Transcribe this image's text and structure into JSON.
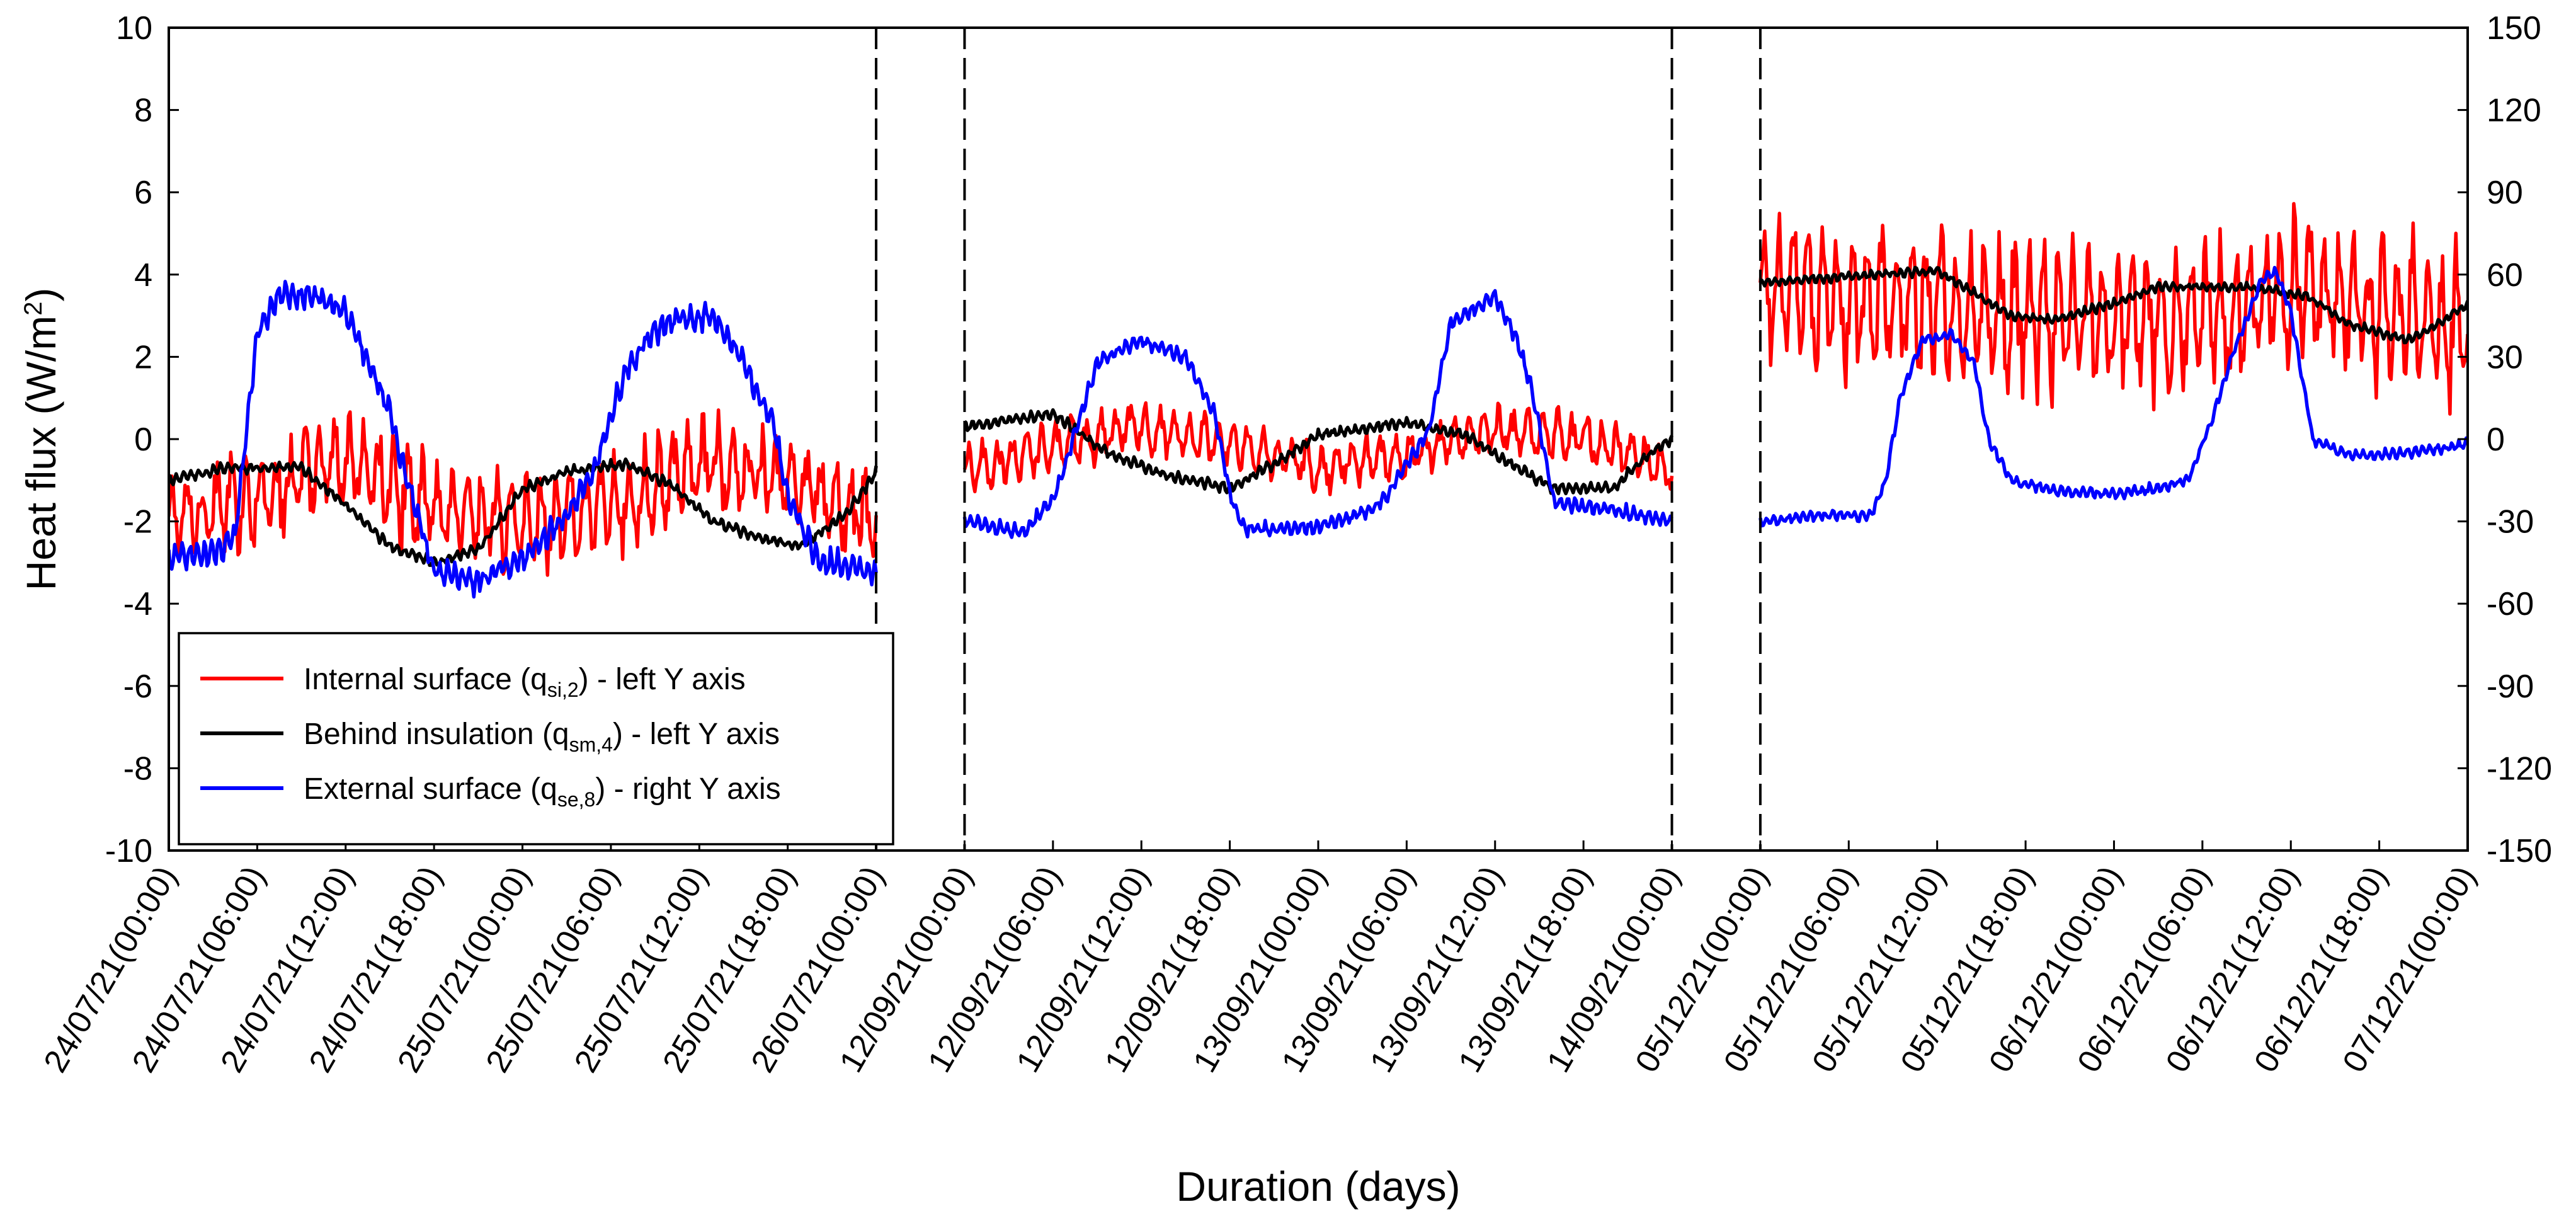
{
  "chart_data": {
    "type": "line",
    "ylabel": "Heat flux (W/m²)",
    "ylabel_base": "Heat flux (W/m",
    "ylabel_sup": "2",
    "ylabel_close": ")",
    "xlabel": "Duration (days)",
    "left_ylim": [
      -10,
      10
    ],
    "right_ylim": [
      -150,
      150
    ],
    "left_ticks": [
      "10",
      "8",
      "6",
      "4",
      "2",
      "0",
      "-2",
      "-4",
      "-6",
      "-8",
      "-10"
    ],
    "right_ticks": [
      "150",
      "120",
      "90",
      "60",
      "30",
      "0",
      "-30",
      "-60",
      "-90",
      "-120",
      "-150"
    ],
    "x_ticks": [
      "24/07/21(00:00)",
      "24/07/21(06:00)",
      "24/07/21(12:00)",
      "24/07/21(18:00)",
      "25/07/21(00:00)",
      "25/07/21(06:00)",
      "25/07/21(12:00)",
      "25/07/21(18:00)",
      "26/07/21(00:00)",
      "12/09/21(00:00)",
      "12/09/21(06:00)",
      "12/09/21(12:00)",
      "12/09/21(18:00)",
      "13/09/21(00:00)",
      "13/09/21(06:00)",
      "13/09/21(12:00)",
      "13/09/21(18:00)",
      "14/09/21(00:00)",
      "05/12/21(00:00)",
      "05/12/21(06:00)",
      "05/12/21(12:00)",
      "05/12/21(18:00)",
      "06/12/21(00:00)",
      "06/12/21(06:00)",
      "06/12/21(12:00)",
      "06/12/21(18:00)",
      "07/12/21(00:00)"
    ],
    "segment_breaks": [
      "26/07/21(00:00)",
      "12/09/21(00:00)",
      "14/09/21(00:00)",
      "05/12/21(00:00)"
    ],
    "legend": [
      {
        "pre": "Internal surface (q",
        "sub": "si,2",
        "post": ") - left Y axis",
        "color": "#ff0000"
      },
      {
        "pre": "Behind insulation (q",
        "sub": "sm,4",
        "post": ") - left Y axis",
        "color": "#000000"
      },
      {
        "pre": "External surface (q",
        "sub": "se,8",
        "post": ") - right Y axis",
        "color": "#0000ff"
      }
    ],
    "series": [
      {
        "name": "Internal surface (qsi,2)",
        "axis": "left",
        "color": "#ff0000",
        "segments": [
          {
            "mean": [
              [
                0,
                -2.0
              ],
              [
                6,
                -1.4
              ],
              [
                12,
                -0.5
              ],
              [
                18,
                -1.6
              ],
              [
                24,
                -2.1
              ],
              [
                30,
                -1.6
              ],
              [
                36,
                -0.7
              ],
              [
                42,
                -1.0
              ],
              [
                48,
                -2.1
              ]
            ],
            "amp": 1.1,
            "period": 1.0
          },
          {
            "mean": [
              [
                0,
                -0.8
              ],
              [
                6,
                -0.2
              ],
              [
                12,
                0.3
              ],
              [
                18,
                -0.1
              ],
              [
                24,
                -0.7
              ],
              [
                30,
                -0.4
              ],
              [
                36,
                0.2
              ],
              [
                42,
                0.0
              ],
              [
                48,
                -0.7
              ]
            ],
            "amp": 0.55,
            "period": 1.0
          },
          {
            "mean": [
              [
                0,
                3.6
              ],
              [
                6,
                3.3
              ],
              [
                12,
                3.4
              ],
              [
                18,
                3.0
              ],
              [
                24,
                2.8
              ],
              [
                30,
                3.0
              ],
              [
                36,
                3.6
              ],
              [
                42,
                3.1
              ],
              [
                48,
                2.6
              ]
            ],
            "amp": 1.7,
            "period": 1.0
          }
        ]
      },
      {
        "name": "Behind insulation (qsm,4)",
        "axis": "left",
        "color": "#000000",
        "segments": [
          {
            "mean": [
              [
                0,
                -1.0
              ],
              [
                4,
                -0.7
              ],
              [
                9,
                -0.7
              ],
              [
                12,
                -1.6
              ],
              [
                15,
                -2.6
              ],
              [
                18,
                -3.0
              ],
              [
                21,
                -2.7
              ],
              [
                24,
                -1.2
              ],
              [
                27,
                -0.8
              ],
              [
                31,
                -0.6
              ],
              [
                34,
                -1.1
              ],
              [
                37,
                -2.0
              ],
              [
                40,
                -2.4
              ],
              [
                43,
                -2.6
              ],
              [
                46,
                -1.8
              ],
              [
                48,
                -0.8
              ]
            ],
            "amp": 0.12,
            "period": 0.5
          },
          {
            "mean": [
              [
                0,
                0.3
              ],
              [
                6,
                0.6
              ],
              [
                10,
                -0.4
              ],
              [
                14,
                -0.9
              ],
              [
                18,
                -1.2
              ],
              [
                21,
                -0.6
              ],
              [
                24,
                0.1
              ],
              [
                30,
                0.4
              ],
              [
                34,
                0.1
              ],
              [
                37,
                -0.6
              ],
              [
                40,
                -1.2
              ],
              [
                44,
                -1.2
              ],
              [
                46,
                -0.5
              ],
              [
                48,
                0.0
              ]
            ],
            "amp": 0.12,
            "period": 0.5
          },
          {
            "mean": [
              [
                0,
                3.8
              ],
              [
                8,
                4.0
              ],
              [
                12,
                4.1
              ],
              [
                17,
                3.0
              ],
              [
                20,
                2.9
              ],
              [
                24,
                3.3
              ],
              [
                27,
                3.7
              ],
              [
                33,
                3.7
              ],
              [
                37,
                3.5
              ],
              [
                40,
                2.8
              ],
              [
                44,
                2.4
              ],
              [
                46,
                2.8
              ],
              [
                48,
                3.3
              ]
            ],
            "amp": 0.1,
            "period": 0.5
          }
        ]
      },
      {
        "name": "External surface (qse,8)",
        "axis": "right",
        "color": "#0000ff",
        "segments": [
          {
            "mean": [
              [
                0,
                -43
              ],
              [
                3,
                -42
              ],
              [
                4.5,
                -35
              ],
              [
                6,
                38
              ],
              [
                7.5,
                52
              ],
              [
                10,
                52
              ],
              [
                12,
                47
              ],
              [
                13.5,
                28
              ],
              [
                15,
                10
              ],
              [
                16,
                -12
              ],
              [
                18,
                -48
              ],
              [
                21,
                -52
              ],
              [
                24,
                -44
              ],
              [
                27,
                -28
              ],
              [
                29,
                -10
              ],
              [
                31,
                25
              ],
              [
                33,
                40
              ],
              [
                35,
                44
              ],
              [
                37,
                45
              ],
              [
                39,
                28
              ],
              [
                41,
                6
              ],
              [
                42,
                -20
              ],
              [
                44,
                -44
              ],
              [
                48,
                -49
              ]
            ],
            "amp": 4.5,
            "period": 0.5
          },
          {
            "mean": [
              [
                0,
                -30
              ],
              [
                2,
                -32
              ],
              [
                4,
                -34
              ],
              [
                6,
                -22
              ],
              [
                7.5,
                2
              ],
              [
                9,
                28
              ],
              [
                12,
                36
              ],
              [
                15,
                30
              ],
              [
                17,
                9
              ],
              [
                18,
                -20
              ],
              [
                19,
                -33
              ],
              [
                24,
                -32
              ],
              [
                27,
                -27
              ],
              [
                28.5,
                -22
              ],
              [
                30,
                -9
              ],
              [
                31.5,
                3
              ],
              [
                33,
                42
              ],
              [
                36,
                52
              ],
              [
                37.5,
                36
              ],
              [
                38.5,
                18
              ],
              [
                40,
                -23
              ],
              [
                44,
                -26
              ],
              [
                48,
                -30
              ]
            ],
            "amp": 2.5,
            "period": 0.5
          },
          {
            "mean": [
              [
                0,
                -30
              ],
              [
                4,
                -28
              ],
              [
                6,
                -28
              ],
              [
                7.5,
                -28
              ],
              [
                8.5,
                -15
              ],
              [
                9.5,
                15
              ],
              [
                11,
                36
              ],
              [
                13,
                38
              ],
              [
                14.5,
                28
              ],
              [
                15.5,
                0
              ],
              [
                17,
                -15
              ],
              [
                20,
                -19
              ],
              [
                24,
                -20
              ],
              [
                27,
                -18
              ],
              [
                29,
                -15
              ],
              [
                30.5,
                5
              ],
              [
                32,
                30
              ],
              [
                34,
                58
              ],
              [
                35,
                61
              ],
              [
                36,
                46
              ],
              [
                37.5,
                0
              ],
              [
                40,
                -6
              ],
              [
                44,
                -5
              ],
              [
                48,
                -2
              ]
            ],
            "amp": 1.8,
            "period": 0.5
          }
        ]
      }
    ]
  }
}
